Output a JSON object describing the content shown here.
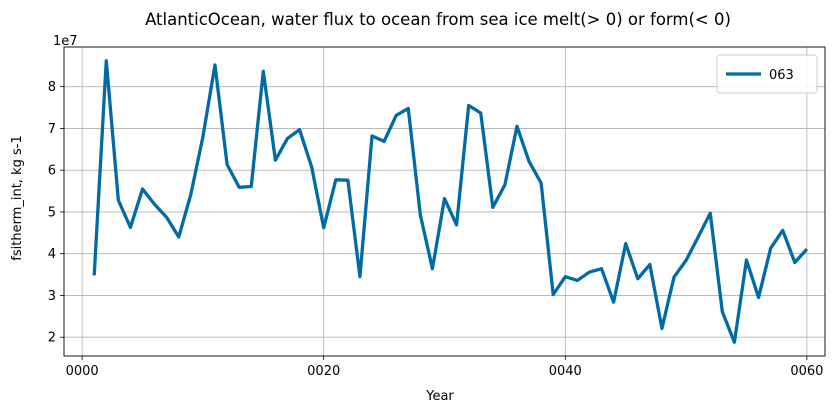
{
  "chart_data": {
    "type": "line",
    "title": "AtlanticOcean, water flux to ocean from sea ice melt(> 0) or form(< 0)",
    "xlabel": "Year",
    "ylabel": "fsitherm_int, kg s-1",
    "y_offset_label": "1e7",
    "y_scale": 10000000,
    "xlim": [
      -1.5,
      61.5
    ],
    "ylim": [
      1.55,
      8.95
    ],
    "x_ticks": [
      0,
      20,
      40,
      60
    ],
    "x_tick_labels": [
      "0000",
      "0020",
      "0040",
      "0060"
    ],
    "y_ticks": [
      2,
      3,
      4,
      5,
      6,
      7,
      8
    ],
    "y_tick_labels": [
      "2",
      "3",
      "4",
      "5",
      "6",
      "7",
      "8"
    ],
    "grid": true,
    "legend_position": "top-right",
    "series": [
      {
        "name": "063",
        "color": "#006ba4",
        "x": [
          1,
          2,
          3,
          4,
          5,
          6,
          7,
          8,
          9,
          10,
          11,
          12,
          13,
          14,
          15,
          16,
          17,
          18,
          19,
          20,
          21,
          22,
          23,
          24,
          25,
          26,
          27,
          28,
          29,
          30,
          31,
          32,
          33,
          34,
          35,
          36,
          37,
          38,
          39,
          40,
          41,
          42,
          43,
          44,
          45,
          46,
          47,
          48,
          49,
          50,
          51,
          52,
          53,
          54,
          55,
          56,
          57,
          58,
          59,
          60
        ],
        "values": [
          3.48,
          8.62,
          5.28,
          4.63,
          5.55,
          5.18,
          4.87,
          4.4,
          5.42,
          6.8,
          8.52,
          6.14,
          5.59,
          5.61,
          8.37,
          6.24,
          6.76,
          6.97,
          6.08,
          4.62,
          5.77,
          5.76,
          3.45,
          6.82,
          6.69,
          7.31,
          7.48,
          4.93,
          3.64,
          5.32,
          4.69,
          7.55,
          7.37,
          5.11,
          5.65,
          7.05,
          6.21,
          5.69,
          3.02,
          3.45,
          3.36,
          3.56,
          3.64,
          2.84,
          4.24,
          3.4,
          3.74,
          2.21,
          3.44,
          3.84,
          4.4,
          4.97,
          2.61,
          1.88,
          3.85,
          2.95,
          4.13,
          4.56,
          3.79,
          4.11
        ]
      }
    ]
  }
}
